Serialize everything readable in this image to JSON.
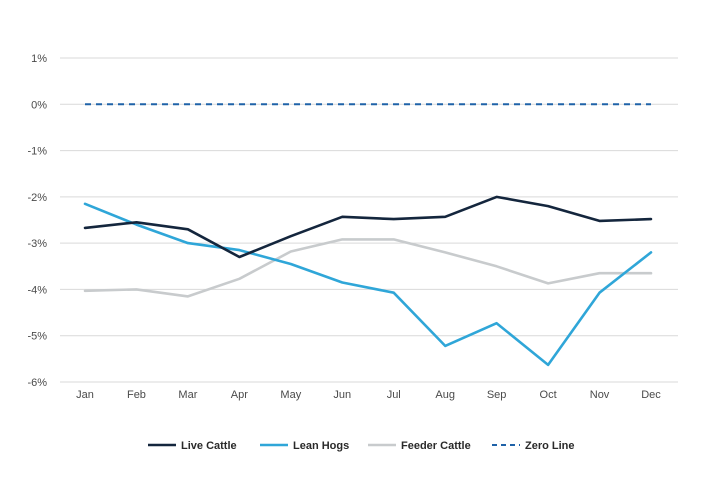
{
  "chart_data": {
    "type": "line",
    "title": "",
    "xlabel": "",
    "ylabel": "",
    "x": [
      "Jan",
      "Feb",
      "Mar",
      "Apr",
      "May",
      "Jun",
      "Jul",
      "Aug",
      "Sep",
      "Oct",
      "Nov",
      "Dec"
    ],
    "y_ticks": [
      "1%",
      "0%",
      "-1%",
      "-2%",
      "-3%",
      "-4%",
      "-5%",
      "-6%"
    ],
    "ylim": [
      -6,
      1
    ],
    "grid": true,
    "legend_position": "bottom",
    "series": [
      {
        "name": "Live Cattle",
        "color": "#14263d",
        "dash": false,
        "values": [
          -2.67,
          -2.55,
          -2.7,
          -3.3,
          -2.85,
          -2.43,
          -2.48,
          -2.43,
          -2.0,
          -2.2,
          -2.52,
          -2.48
        ]
      },
      {
        "name": "Lean Hogs",
        "color": "#2fa6d8",
        "dash": false,
        "values": [
          -2.15,
          -2.6,
          -3.0,
          -3.15,
          -3.45,
          -3.85,
          -4.07,
          -5.22,
          -4.73,
          -5.63,
          -4.07,
          -3.2
        ]
      },
      {
        "name": "Feeder Cattle",
        "color": "#c8cbcd",
        "dash": false,
        "values": [
          -4.03,
          -4.0,
          -4.15,
          -3.77,
          -3.18,
          -2.92,
          -2.92,
          -3.2,
          -3.5,
          -3.87,
          -3.65,
          -3.65
        ]
      },
      {
        "name": "Zero Line",
        "color": "#1f62a8",
        "dash": true,
        "values": [
          0,
          0,
          0,
          0,
          0,
          0,
          0,
          0,
          0,
          0,
          0,
          0
        ]
      }
    ]
  }
}
